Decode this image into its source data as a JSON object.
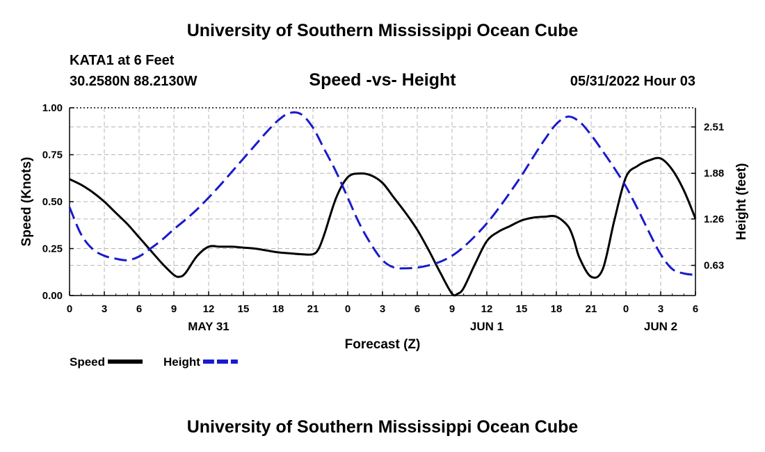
{
  "header": {
    "title": "University of Southern Mississippi Ocean Cube",
    "station": "KATA1 at 6 Feet",
    "coords": "30.2580N  88.2130W",
    "subtitle": "Speed -vs- Height",
    "datetime": "05/31/2022 Hour 03"
  },
  "footer": {
    "title": "University of Southern Mississippi Ocean Cube"
  },
  "chart_data": {
    "type": "line",
    "xlabel": "Forecast (Z)",
    "ylabel_left": "Speed (Knots)",
    "ylabel_right": "Height (feet)",
    "x_range": [
      0,
      54
    ],
    "y_left_range": [
      0,
      1
    ],
    "y_right_range": [
      0.22,
      2.77
    ],
    "x_ticks": [
      0,
      3,
      6,
      9,
      12,
      15,
      18,
      21,
      24,
      27,
      30,
      33,
      36,
      39,
      42,
      45,
      48,
      51,
      54
    ],
    "x_tick_labels": [
      "0",
      "3",
      "6",
      "9",
      "12",
      "15",
      "18",
      "21",
      "0",
      "3",
      "6",
      "9",
      "12",
      "15",
      "18",
      "21",
      "0",
      "3",
      "6"
    ],
    "day_labels": [
      {
        "x": 12,
        "label": "MAY 31"
      },
      {
        "x": 36,
        "label": "JUN 1"
      },
      {
        "x": 51,
        "label": "JUN 2"
      }
    ],
    "y_left_ticks": [
      0,
      0.25,
      0.5,
      0.75,
      1.0
    ],
    "y_left_tick_labels": [
      "0.00",
      "0.25",
      "0.50",
      "0.75",
      "1.00"
    ],
    "y_right_ticks": [
      0.63,
      1.26,
      1.88,
      2.51
    ],
    "y_right_tick_labels": [
      "0.63",
      "1.26",
      "1.88",
      "2.51"
    ],
    "grid": true,
    "series": [
      {
        "name": "Speed",
        "axis": "left",
        "color": "#000000",
        "dash": "solid",
        "x": [
          0,
          1,
          2,
          3,
          4,
          5,
          6,
          7,
          8,
          9,
          9.5,
          10,
          11,
          12,
          13,
          14,
          15,
          16,
          17,
          18,
          19,
          20,
          21,
          21.5,
          22,
          23,
          24,
          25,
          26,
          27,
          28,
          29,
          30,
          31,
          32,
          33,
          33.5,
          34,
          35,
          36,
          37,
          38,
          39,
          40,
          41,
          42,
          43,
          43.5,
          44,
          45,
          46,
          47,
          48,
          49,
          50,
          51,
          52,
          53,
          54
        ],
        "y": [
          0.62,
          0.59,
          0.55,
          0.5,
          0.44,
          0.38,
          0.31,
          0.24,
          0.17,
          0.11,
          0.1,
          0.12,
          0.21,
          0.26,
          0.26,
          0.26,
          0.255,
          0.25,
          0.24,
          0.23,
          0.225,
          0.22,
          0.22,
          0.25,
          0.33,
          0.52,
          0.63,
          0.65,
          0.64,
          0.6,
          0.52,
          0.44,
          0.35,
          0.24,
          0.12,
          0.01,
          0.01,
          0.04,
          0.17,
          0.29,
          0.34,
          0.37,
          0.4,
          0.415,
          0.42,
          0.42,
          0.37,
          0.3,
          0.2,
          0.1,
          0.14,
          0.4,
          0.63,
          0.69,
          0.72,
          0.73,
          0.67,
          0.56,
          0.41
        ]
      },
      {
        "name": "Height",
        "axis": "right",
        "color": "#1a1acc",
        "dash": "dashed",
        "x": [
          0,
          1,
          2,
          3,
          4,
          5,
          6,
          7,
          8,
          9,
          10,
          11,
          12,
          13,
          14,
          15,
          16,
          17,
          18,
          19,
          20,
          21,
          22,
          23,
          24,
          25,
          26,
          27,
          28,
          29,
          30,
          31,
          32,
          33,
          34,
          35,
          36,
          37,
          38,
          39,
          40,
          41,
          42,
          43,
          44,
          45,
          46,
          47,
          48,
          49,
          50,
          51,
          52,
          53,
          54
        ],
        "y": [
          1.42,
          1.05,
          0.85,
          0.76,
          0.72,
          0.7,
          0.75,
          0.86,
          0.98,
          1.12,
          1.25,
          1.39,
          1.55,
          1.72,
          1.9,
          2.08,
          2.26,
          2.44,
          2.6,
          2.7,
          2.68,
          2.5,
          2.2,
          1.9,
          1.55,
          1.2,
          0.92,
          0.7,
          0.6,
          0.59,
          0.6,
          0.63,
          0.68,
          0.76,
          0.88,
          1.03,
          1.2,
          1.4,
          1.62,
          1.85,
          2.1,
          2.34,
          2.55,
          2.65,
          2.58,
          2.4,
          2.18,
          1.95,
          1.7,
          1.4,
          1.08,
          0.78,
          0.58,
          0.52,
          0.5
        ]
      }
    ],
    "legend": {
      "position": "bottom-left",
      "entries": [
        "Speed",
        "Height"
      ]
    }
  }
}
